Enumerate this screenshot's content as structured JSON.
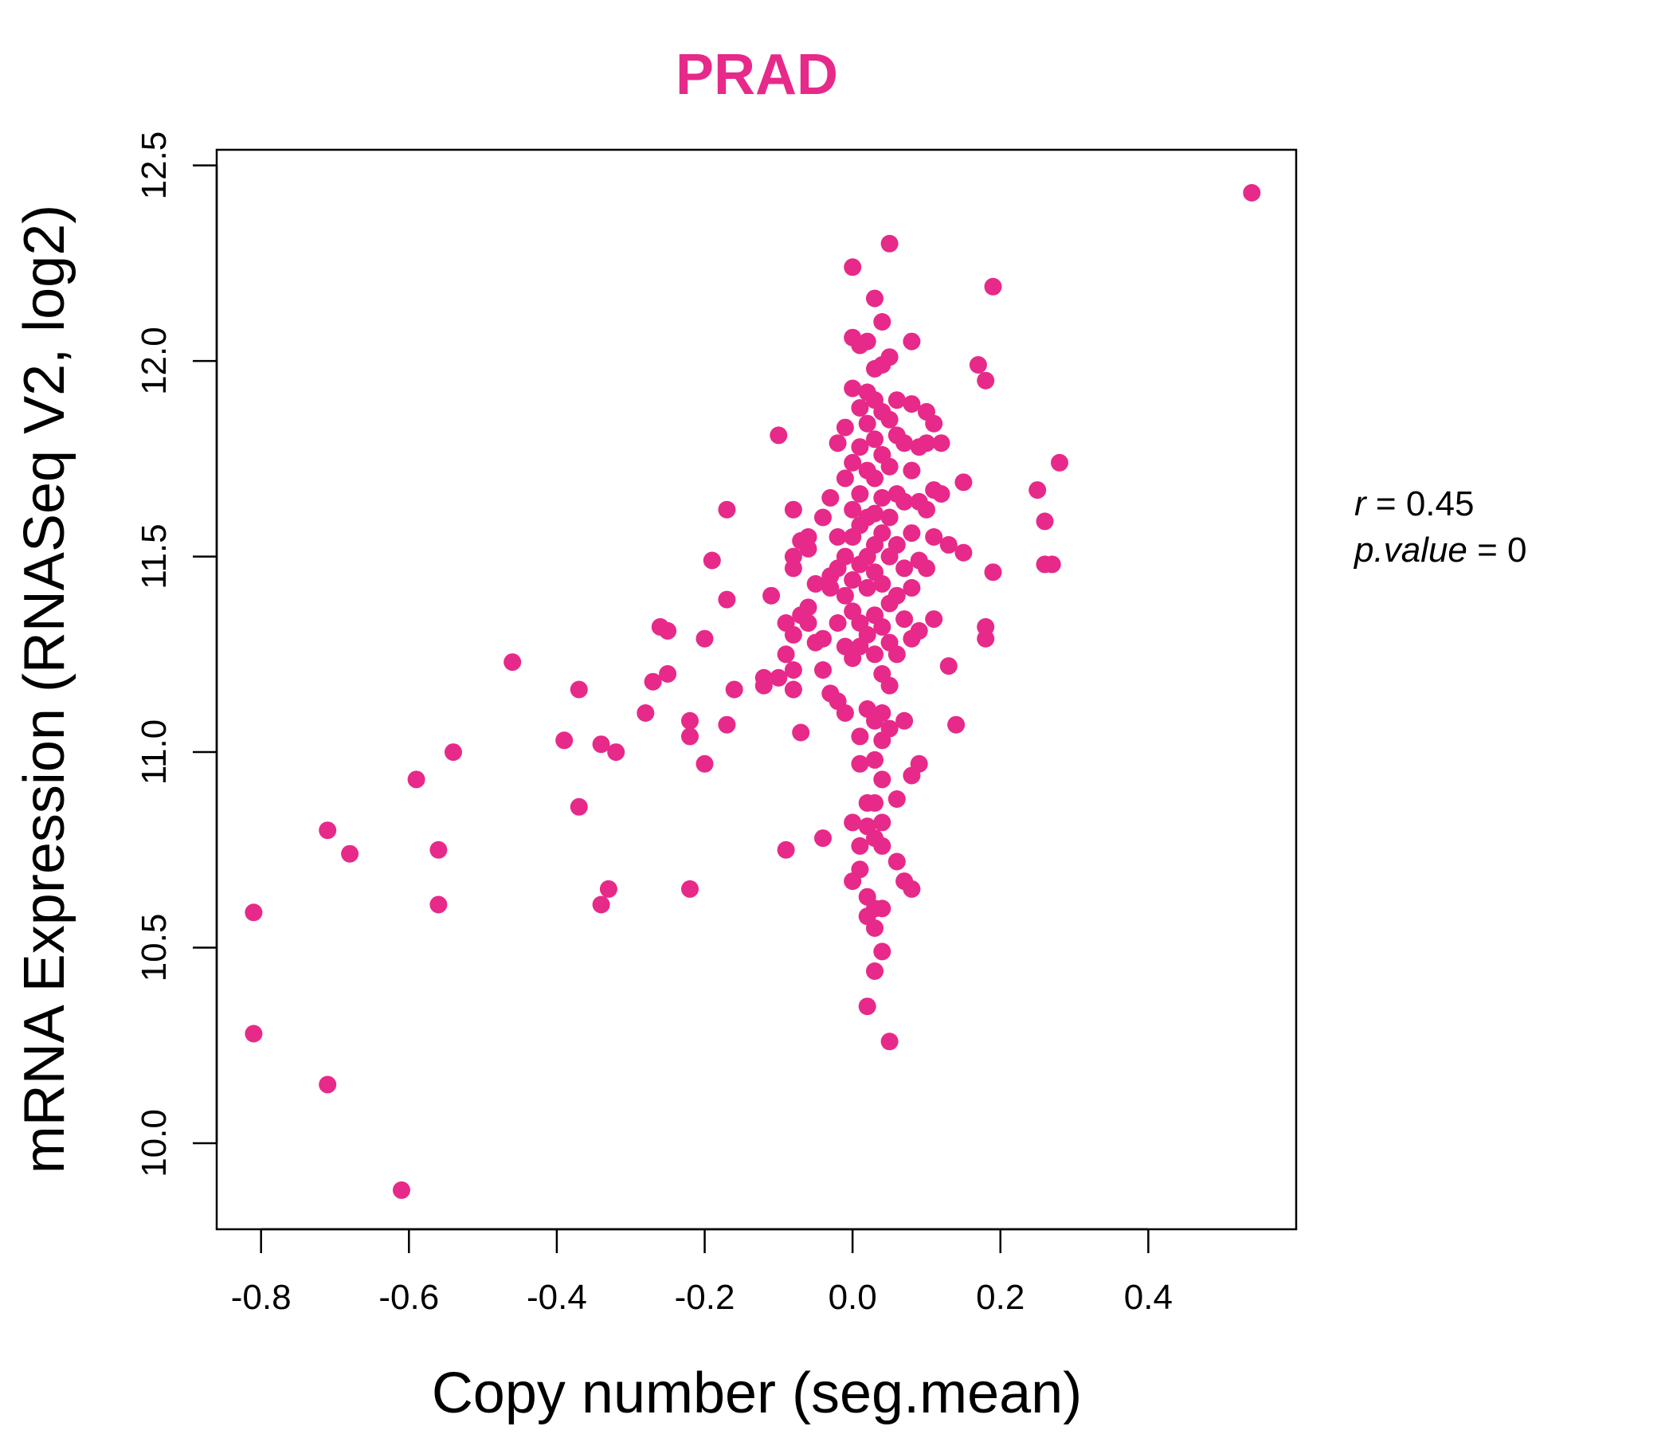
{
  "chart_data": {
    "type": "scatter",
    "title": "PRAD",
    "xlabel": "Copy number (seg.mean)",
    "ylabel": "mRNA Expression (RNASeq V2, log2)",
    "xlim": [
      -0.86,
      0.6
    ],
    "ylim": [
      9.78,
      12.54
    ],
    "xticks": [
      -0.8,
      -0.6,
      -0.4,
      -0.2,
      0.0,
      0.2,
      0.4
    ],
    "xtick_labels": [
      "-0.8",
      "-0.6",
      "-0.4",
      "-0.2",
      "0.0",
      "0.2",
      "0.4"
    ],
    "yticks": [
      10.0,
      10.5,
      11.0,
      11.5,
      12.0,
      12.5
    ],
    "ytick_labels": [
      "10.0",
      "10.5",
      "11.0",
      "11.5",
      "12.0",
      "12.5"
    ],
    "point_color": "#E7298A",
    "stats": {
      "r_symbol": "r",
      "r_value": "0.45",
      "p_symbol": "p.value",
      "p_value": "0"
    },
    "points": [
      [
        -0.81,
        10.59
      ],
      [
        -0.81,
        10.28
      ],
      [
        -0.71,
        10.8
      ],
      [
        -0.71,
        10.15
      ],
      [
        -0.68,
        10.74
      ],
      [
        -0.61,
        9.88
      ],
      [
        -0.59,
        10.93
      ],
      [
        -0.56,
        10.75
      ],
      [
        -0.56,
        10.61
      ],
      [
        -0.54,
        11.0
      ],
      [
        -0.46,
        11.23
      ],
      [
        -0.39,
        11.03
      ],
      [
        -0.37,
        11.16
      ],
      [
        -0.37,
        10.86
      ],
      [
        -0.34,
        11.02
      ],
      [
        -0.34,
        10.61
      ],
      [
        -0.33,
        10.65
      ],
      [
        -0.32,
        11.0
      ],
      [
        -0.28,
        11.1
      ],
      [
        -0.27,
        11.18
      ],
      [
        -0.26,
        11.32
      ],
      [
        -0.25,
        11.31
      ],
      [
        -0.25,
        11.2
      ],
      [
        -0.22,
        11.08
      ],
      [
        -0.22,
        11.04
      ],
      [
        -0.22,
        10.65
      ],
      [
        -0.2,
        11.29
      ],
      [
        -0.2,
        10.97
      ],
      [
        -0.19,
        11.49
      ],
      [
        -0.17,
        11.62
      ],
      [
        -0.17,
        11.39
      ],
      [
        -0.17,
        11.07
      ],
      [
        -0.16,
        11.16
      ],
      [
        -0.12,
        11.19
      ],
      [
        -0.12,
        11.17
      ],
      [
        -0.11,
        11.4
      ],
      [
        -0.1,
        11.19
      ],
      [
        -0.1,
        11.81
      ],
      [
        -0.09,
        11.33
      ],
      [
        -0.09,
        11.25
      ],
      [
        -0.09,
        10.75
      ],
      [
        -0.08,
        11.62
      ],
      [
        -0.08,
        11.5
      ],
      [
        -0.08,
        11.47
      ],
      [
        -0.08,
        11.3
      ],
      [
        -0.08,
        11.21
      ],
      [
        -0.08,
        11.16
      ],
      [
        -0.07,
        11.54
      ],
      [
        -0.07,
        11.35
      ],
      [
        -0.07,
        11.05
      ],
      [
        -0.06,
        11.55
      ],
      [
        -0.06,
        11.33
      ],
      [
        -0.06,
        11.37
      ],
      [
        -0.06,
        11.52
      ],
      [
        -0.05,
        11.43
      ],
      [
        -0.05,
        11.28
      ],
      [
        -0.04,
        11.6
      ],
      [
        -0.04,
        11.29
      ],
      [
        -0.04,
        11.21
      ],
      [
        -0.04,
        10.78
      ],
      [
        -0.03,
        11.65
      ],
      [
        -0.03,
        11.45
      ],
      [
        -0.03,
        11.42
      ],
      [
        -0.03,
        11.15
      ],
      [
        -0.02,
        11.79
      ],
      [
        -0.02,
        11.55
      ],
      [
        -0.02,
        11.33
      ],
      [
        -0.02,
        11.47
      ],
      [
        -0.02,
        11.13
      ],
      [
        -0.01,
        11.83
      ],
      [
        -0.01,
        11.7
      ],
      [
        -0.01,
        11.5
      ],
      [
        -0.01,
        11.4
      ],
      [
        -0.01,
        11.27
      ],
      [
        -0.01,
        11.1
      ],
      [
        0.0,
        12.24
      ],
      [
        0.0,
        12.06
      ],
      [
        0.0,
        11.93
      ],
      [
        0.0,
        11.74
      ],
      [
        0.0,
        11.62
      ],
      [
        0.0,
        11.55
      ],
      [
        0.0,
        11.44
      ],
      [
        0.0,
        11.36
      ],
      [
        0.0,
        11.24
      ],
      [
        0.0,
        10.82
      ],
      [
        0.0,
        10.67
      ],
      [
        0.01,
        12.04
      ],
      [
        0.01,
        11.88
      ],
      [
        0.01,
        11.78
      ],
      [
        0.01,
        11.66
      ],
      [
        0.01,
        11.58
      ],
      [
        0.01,
        11.48
      ],
      [
        0.01,
        11.33
      ],
      [
        0.01,
        11.27
      ],
      [
        0.01,
        11.04
      ],
      [
        0.01,
        10.97
      ],
      [
        0.01,
        10.76
      ],
      [
        0.01,
        10.7
      ],
      [
        0.02,
        12.05
      ],
      [
        0.02,
        11.92
      ],
      [
        0.02,
        11.84
      ],
      [
        0.02,
        11.72
      ],
      [
        0.02,
        11.6
      ],
      [
        0.02,
        11.5
      ],
      [
        0.02,
        11.42
      ],
      [
        0.02,
        11.3
      ],
      [
        0.02,
        11.11
      ],
      [
        0.02,
        10.87
      ],
      [
        0.02,
        10.81
      ],
      [
        0.02,
        10.63
      ],
      [
        0.02,
        10.58
      ],
      [
        0.02,
        10.35
      ],
      [
        0.03,
        12.16
      ],
      [
        0.03,
        11.98
      ],
      [
        0.03,
        11.9
      ],
      [
        0.03,
        11.8
      ],
      [
        0.03,
        11.7
      ],
      [
        0.03,
        11.61
      ],
      [
        0.03,
        11.53
      ],
      [
        0.03,
        11.46
      ],
      [
        0.03,
        11.35
      ],
      [
        0.03,
        11.25
      ],
      [
        0.03,
        11.08
      ],
      [
        0.03,
        10.98
      ],
      [
        0.03,
        10.87
      ],
      [
        0.03,
        10.78
      ],
      [
        0.03,
        10.6
      ],
      [
        0.03,
        10.55
      ],
      [
        0.03,
        10.44
      ],
      [
        0.04,
        12.1
      ],
      [
        0.04,
        11.99
      ],
      [
        0.04,
        11.87
      ],
      [
        0.04,
        11.76
      ],
      [
        0.04,
        11.65
      ],
      [
        0.04,
        11.56
      ],
      [
        0.04,
        11.43
      ],
      [
        0.04,
        11.32
      ],
      [
        0.04,
        11.2
      ],
      [
        0.04,
        11.1
      ],
      [
        0.04,
        11.03
      ],
      [
        0.04,
        10.93
      ],
      [
        0.04,
        10.82
      ],
      [
        0.04,
        10.76
      ],
      [
        0.04,
        10.6
      ],
      [
        0.04,
        10.49
      ],
      [
        0.05,
        12.3
      ],
      [
        0.05,
        12.01
      ],
      [
        0.05,
        11.85
      ],
      [
        0.05,
        11.73
      ],
      [
        0.05,
        11.6
      ],
      [
        0.05,
        11.5
      ],
      [
        0.05,
        11.38
      ],
      [
        0.05,
        11.28
      ],
      [
        0.05,
        11.17
      ],
      [
        0.05,
        11.06
      ],
      [
        0.05,
        10.26
      ],
      [
        0.06,
        11.9
      ],
      [
        0.06,
        11.81
      ],
      [
        0.06,
        11.66
      ],
      [
        0.06,
        11.53
      ],
      [
        0.06,
        11.4
      ],
      [
        0.06,
        11.25
      ],
      [
        0.06,
        10.88
      ],
      [
        0.06,
        10.72
      ],
      [
        0.07,
        11.79
      ],
      [
        0.07,
        11.64
      ],
      [
        0.07,
        11.47
      ],
      [
        0.07,
        11.34
      ],
      [
        0.07,
        11.08
      ],
      [
        0.07,
        10.67
      ],
      [
        0.08,
        12.05
      ],
      [
        0.08,
        11.89
      ],
      [
        0.08,
        11.72
      ],
      [
        0.08,
        11.56
      ],
      [
        0.08,
        11.42
      ],
      [
        0.08,
        11.29
      ],
      [
        0.08,
        10.94
      ],
      [
        0.08,
        10.65
      ],
      [
        0.09,
        11.78
      ],
      [
        0.09,
        11.64
      ],
      [
        0.09,
        11.49
      ],
      [
        0.09,
        11.31
      ],
      [
        0.09,
        10.97
      ],
      [
        0.1,
        11.87
      ],
      [
        0.1,
        11.79
      ],
      [
        0.1,
        11.62
      ],
      [
        0.1,
        11.47
      ],
      [
        0.11,
        11.84
      ],
      [
        0.11,
        11.67
      ],
      [
        0.11,
        11.55
      ],
      [
        0.11,
        11.34
      ],
      [
        0.12,
        11.79
      ],
      [
        0.12,
        11.66
      ],
      [
        0.13,
        11.53
      ],
      [
        0.13,
        11.22
      ],
      [
        0.14,
        11.07
      ],
      [
        0.15,
        11.69
      ],
      [
        0.15,
        11.51
      ],
      [
        0.17,
        11.99
      ],
      [
        0.18,
        11.95
      ],
      [
        0.18,
        11.29
      ],
      [
        0.18,
        11.32
      ],
      [
        0.19,
        12.19
      ],
      [
        0.19,
        11.46
      ],
      [
        0.25,
        11.67
      ],
      [
        0.26,
        11.59
      ],
      [
        0.26,
        11.48
      ],
      [
        0.27,
        11.48
      ],
      [
        0.28,
        11.74
      ],
      [
        0.54,
        12.43
      ]
    ]
  }
}
